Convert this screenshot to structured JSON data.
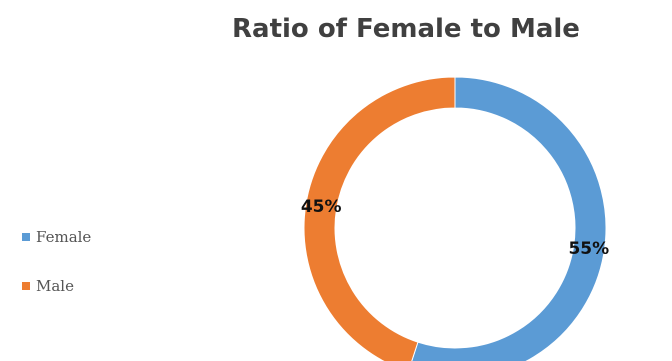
{
  "chart_data": {
    "type": "pie",
    "variant": "donut",
    "title": "Ratio of Female to Male",
    "categories": [
      "Female",
      "Male"
    ],
    "values": [
      55,
      45
    ],
    "value_labels": [
      "55%",
      "45%"
    ],
    "colors": [
      "#5B9BD5",
      "#ED7D31"
    ],
    "legend_position": "left"
  },
  "legend": {
    "items": [
      {
        "label": "Female",
        "color": "#5B9BD5"
      },
      {
        "label": "Male",
        "color": "#ED7D31"
      }
    ]
  }
}
